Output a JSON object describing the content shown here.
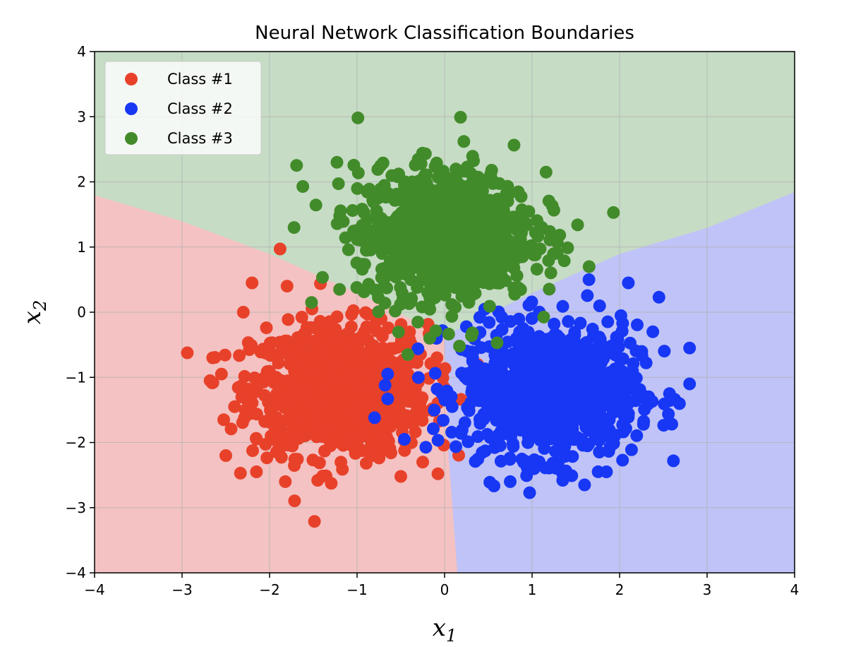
{
  "chart_data": {
    "type": "scatter",
    "title": "Neural Network Classification Boundaries",
    "xlabel": "x",
    "xlabel_sub": "1",
    "ylabel": "x",
    "ylabel_sub": "2",
    "xlim": [
      -4,
      4
    ],
    "ylim": [
      -4,
      4
    ],
    "xticks": [
      -4,
      -3,
      -2,
      -1,
      0,
      1,
      2,
      3,
      4
    ],
    "yticks": [
      -4,
      -3,
      -2,
      -1,
      0,
      1,
      2,
      3,
      4
    ],
    "xtick_labels": [
      "−4",
      "−3",
      "−2",
      "−1",
      "0",
      "1",
      "2",
      "3",
      "4"
    ],
    "ytick_labels": [
      "−4",
      "−3",
      "−2",
      "−1",
      "0",
      "1",
      "2",
      "3",
      "4"
    ],
    "grid": true,
    "legend_position": "top-left",
    "decision_regions": [
      {
        "class": "Class #1",
        "color": "#f4c2c2",
        "boundary_points": [
          [
            -4,
            1.8
          ],
          [
            -3,
            1.4
          ],
          [
            -2,
            0.9
          ],
          [
            -1,
            0.3
          ],
          [
            0,
            -0.35
          ],
          [
            0.05,
            -2.2
          ],
          [
            0.15,
            -4
          ],
          [
            -4,
            -4
          ]
        ]
      },
      {
        "class": "Class #2",
        "color": "#c0c3f7",
        "boundary_points": [
          [
            0,
            -0.35
          ],
          [
            1,
            0.3
          ],
          [
            2,
            0.9
          ],
          [
            3,
            1.3
          ],
          [
            4,
            1.85
          ],
          [
            4,
            -4
          ],
          [
            0.15,
            -4
          ],
          [
            0.05,
            -2.2
          ]
        ]
      },
      {
        "class": "Class #3",
        "color": "#c6dcc5",
        "boundary_points": [
          [
            -4,
            4
          ],
          [
            4,
            4
          ],
          [
            4,
            1.85
          ],
          [
            3,
            1.3
          ],
          [
            2,
            0.9
          ],
          [
            1,
            0.3
          ],
          [
            0,
            -0.35
          ],
          [
            -1,
            0.3
          ],
          [
            -2,
            0.9
          ],
          [
            -3,
            1.4
          ],
          [
            -4,
            1.8
          ]
        ]
      }
    ],
    "series": [
      {
        "name": "Class #1",
        "color": "#e8412a",
        "distribution": {
          "center": [
            -1.2,
            -1.2
          ],
          "spread": [
            0.5,
            0.5
          ],
          "count": 900
        },
        "outliers": [
          [
            -2.65,
            -0.7
          ],
          [
            -2.68,
            -1.05
          ],
          [
            -2.5,
            -2.2
          ],
          [
            -2.2,
            0.45
          ],
          [
            -1.8,
            0.4
          ],
          [
            -1.82,
            -2.6
          ],
          [
            -1.45,
            -2.58
          ],
          [
            -0.5,
            -2.52
          ],
          [
            -2.15,
            -2.45
          ],
          [
            -1.88,
            0.97
          ],
          [
            -2.4,
            -1.45
          ],
          [
            -2.3,
            0.0
          ],
          [
            -0.25,
            -2.3
          ],
          [
            -2.55,
            -0.95
          ]
        ]
      },
      {
        "name": "Class #2",
        "color": "#1737f5",
        "distribution": {
          "center": [
            1.2,
            -1.2
          ],
          "spread": [
            0.5,
            0.5
          ],
          "count": 900
        },
        "outliers": [
          [
            2.8,
            -0.55
          ],
          [
            2.45,
            0.23
          ],
          [
            2.8,
            -1.1
          ],
          [
            2.57,
            -1.25
          ],
          [
            1.6,
            -2.65
          ],
          [
            0.75,
            -2.6
          ],
          [
            1.35,
            -2.58
          ],
          [
            -0.8,
            -1.62
          ],
          [
            -0.65,
            -1.33
          ],
          [
            -0.65,
            -0.95
          ],
          [
            1.85,
            -2.45
          ],
          [
            2.1,
            0.45
          ],
          [
            1.65,
            0.5
          ],
          [
            2.38,
            -0.3
          ]
        ]
      },
      {
        "name": "Class #3",
        "color": "#428b2a",
        "distribution": {
          "center": [
            0.0,
            1.2
          ],
          "spread": [
            0.5,
            0.5
          ],
          "count": 900
        },
        "outliers": [
          [
            -1.23,
            2.3
          ],
          [
            -1.62,
            1.93
          ],
          [
            -1.72,
            1.3
          ],
          [
            1.93,
            1.53
          ],
          [
            1.52,
            1.34
          ],
          [
            0.22,
            2.62
          ],
          [
            1.16,
            2.15
          ],
          [
            -0.45,
            2.0
          ],
          [
            -0.42,
            -0.65
          ],
          [
            -0.17,
            -0.4
          ],
          [
            0.17,
            -0.52
          ],
          [
            0.6,
            -0.47
          ],
          [
            -1.52,
            0.15
          ],
          [
            -1.2,
            0.35
          ]
        ]
      }
    ]
  }
}
